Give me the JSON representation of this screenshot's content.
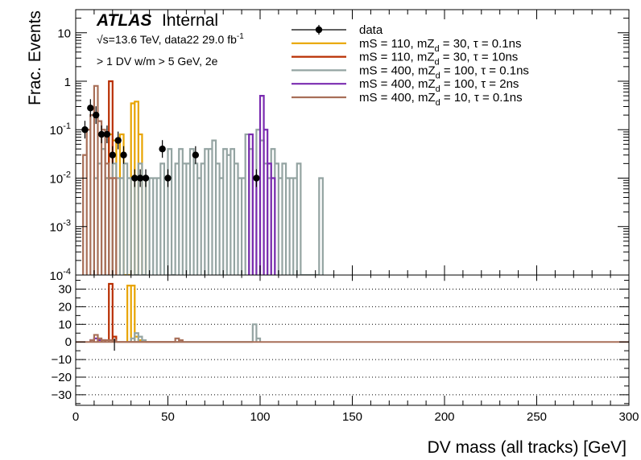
{
  "chart_data": [
    {
      "type": "step-histogram",
      "panel": "upper",
      "ylabel": "Frac. Events",
      "yscale": "log",
      "ylim": [
        0.0001,
        30
      ],
      "ytick_labels": [
        "10^-4",
        "10^-3",
        "10^-2",
        "10^-1",
        "1",
        "10"
      ],
      "annotations": {
        "experiment": "ATLAS",
        "status": "Internal",
        "energy_line": "√s=13.6 TeV, data22 29.0 fb-1",
        "selection": "> 1 DV w/m > 5 GeV, 2e"
      },
      "legend_position": "top-right",
      "series": [
        {
          "name": "data",
          "kind": "points",
          "color": "#000000",
          "x": [
            5,
            8,
            11,
            14,
            17,
            20,
            23,
            26,
            32,
            35,
            38,
            47,
            50,
            65,
            98
          ],
          "y": [
            0.1,
            0.28,
            0.2,
            0.08,
            0.08,
            0.03,
            0.06,
            0.03,
            0.01,
            0.01,
            0.01,
            0.04,
            0.01,
            0.03,
            0.01
          ]
        },
        {
          "name": "mS = 110, mZd = 30, τ = 0.1ns",
          "kind": "hist",
          "color": "#e8a400",
          "edges": [
            16,
            18,
            20,
            22,
            24,
            26,
            28,
            30,
            32,
            34,
            36,
            38
          ],
          "values": [
            0.01,
            0.08,
            0.06,
            0.06,
            0.08,
            0.0001,
            0.0001,
            0.35,
            0.38,
            0.08,
            0.01
          ]
        },
        {
          "name": "mS = 110, mZd = 30, τ = 10ns",
          "kind": "hist",
          "color": "#b82e00",
          "edges": [
            16,
            18,
            20,
            22
          ],
          "values": [
            0.01,
            1.0,
            0.01
          ]
        },
        {
          "name": "mS = 400, mZd = 100, τ = 0.1ns",
          "kind": "hist",
          "color": "#94a4a2",
          "edges": [
            10,
            12,
            14,
            16,
            18,
            20,
            22,
            24,
            26,
            28,
            30,
            32,
            34,
            36,
            38,
            40,
            42,
            44,
            46,
            48,
            50,
            52,
            54,
            56,
            58,
            60,
            62,
            64,
            66,
            68,
            70,
            72,
            74,
            76,
            78,
            80,
            82,
            84,
            86,
            88,
            90,
            92,
            94,
            96,
            98,
            100,
            102,
            104,
            106,
            108,
            110,
            112,
            114,
            116,
            118,
            120,
            122,
            124,
            126,
            128,
            130,
            132,
            134
          ],
          "values": [
            0.01,
            0.02,
            0.04,
            0.01,
            0.01,
            0.02,
            0.01,
            0.01,
            0.02,
            0.01,
            0.01,
            0.0001,
            0.02,
            0.0001,
            0.01,
            0.01,
            0.01,
            0.01,
            0.02,
            0.01,
            0.04,
            0.0001,
            0.02,
            0.04,
            0.02,
            0.02,
            0.04,
            0.02,
            0.01,
            0.02,
            0.04,
            0.04,
            0.06,
            0.02,
            0.01,
            0.04,
            0.03,
            0.04,
            0.02,
            0.01,
            0.01,
            0.08,
            0.04,
            0.01,
            0.1,
            0.06,
            0.02,
            0.01,
            0.04,
            0.02,
            0.01,
            0.02,
            0.01,
            0.01,
            0.01,
            0.02,
            0.0001,
            0.0001,
            0.0001,
            0.0001,
            0.0001,
            0.01
          ]
        },
        {
          "name": "mS = 400, mZd = 100, τ = 2ns",
          "kind": "hist",
          "color": "#7a2bb0",
          "edges": [
            94,
            96,
            98,
            100,
            102,
            104,
            106,
            108
          ],
          "values": [
            0.08,
            0.01,
            0.01,
            0.5,
            0.1,
            0.02,
            0.01
          ]
        },
        {
          "name": "mS = 400, mZd = 10, τ = 0.1ns",
          "kind": "hist",
          "color": "#a86f58",
          "edges": [
            4,
            6,
            8,
            10,
            12,
            14,
            16,
            18,
            20,
            22
          ],
          "values": [
            0.03,
            0.1,
            0.2,
            0.8,
            0.15,
            0.1,
            0.02,
            0.01,
            0.01
          ]
        }
      ]
    },
    {
      "type": "step-histogram",
      "panel": "lower",
      "xlabel": "DV mass (all tracks) [GeV]",
      "xlim": [
        0,
        300
      ],
      "ylim": [
        -36,
        38
      ],
      "xticks": [
        0,
        50,
        100,
        150,
        200,
        250,
        300
      ],
      "yticks": [
        -30,
        -20,
        -10,
        0,
        10,
        20,
        30
      ],
      "grid_y": true,
      "series": [
        {
          "name": "mS = 110, mZd = 30, τ = 0.1ns",
          "color": "#e8a400",
          "edges": [
            28,
            30,
            32,
            34,
            36
          ],
          "values": [
            32,
            32,
            3,
            1
          ]
        },
        {
          "name": "mS = 110, mZd = 30, τ = 10ns",
          "color": "#b82e00",
          "edges": [
            18,
            20,
            22
          ],
          "values": [
            33,
            3
          ]
        },
        {
          "name": "mS = 400, mZd = 100, τ = 0.1ns",
          "color": "#94a4a2",
          "edges": [
            30,
            32,
            34,
            36,
            38,
            96,
            98,
            100
          ],
          "values": [
            2,
            5,
            3,
            1,
            0,
            10,
            2
          ]
        },
        {
          "name": "mS = 400, mZd = 100, τ = 2ns",
          "color": "#7a2bb0",
          "edges": [
            8,
            10,
            12,
            14,
            16
          ],
          "values": [
            1,
            2,
            1,
            1
          ]
        },
        {
          "name": "mS = 400, mZd = 10, τ = 0.1ns",
          "color": "#a86f58",
          "edges": [
            8,
            10,
            12,
            14,
            16,
            18,
            20,
            22,
            54,
            56,
            58
          ],
          "values": [
            1,
            4,
            2,
            1,
            1,
            1,
            1,
            0,
            2,
            1
          ]
        }
      ]
    }
  ]
}
